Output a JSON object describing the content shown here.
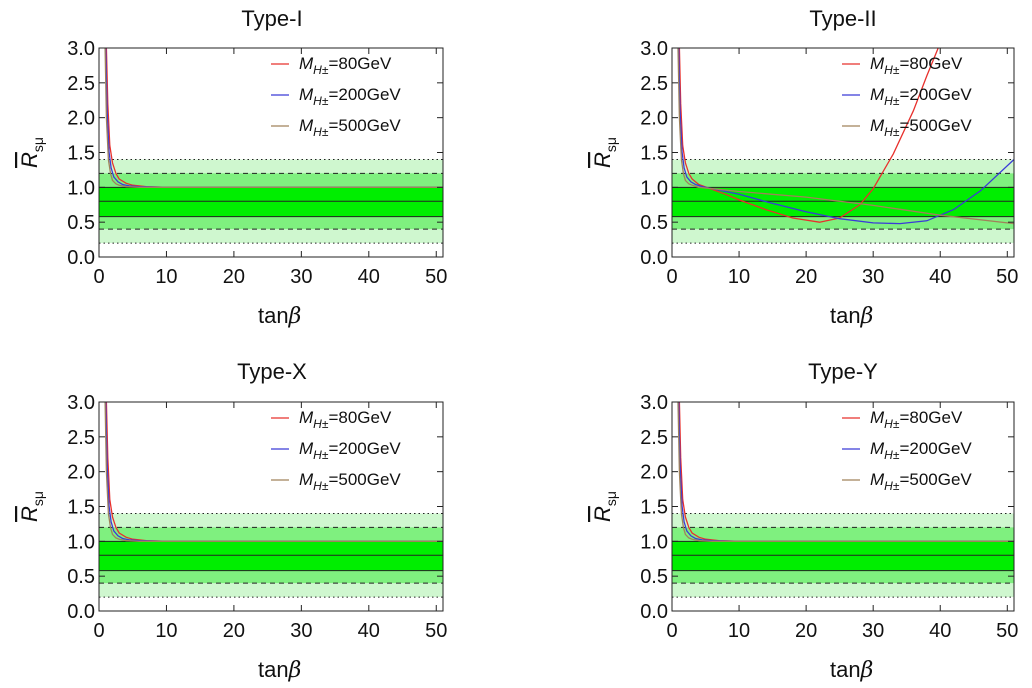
{
  "figure": {
    "xlabel_main": "tan",
    "xlabel_greek": "β",
    "ylabel_main": "R",
    "ylabel_sub": "sμ"
  },
  "chart_data": [
    {
      "type": "line",
      "title": "Type-I",
      "xlim": [
        0,
        51
      ],
      "ylim": [
        0,
        3
      ],
      "xticks": [
        "0",
        "10",
        "20",
        "30",
        "40",
        "50"
      ],
      "yticks": [
        "0.0",
        "0.5",
        "1.0",
        "1.5",
        "2.0",
        "2.5",
        "3.0"
      ],
      "bands": {
        "central": 0.8,
        "one_sigma": [
          0.58,
          1.0
        ],
        "two_sigma": [
          0.4,
          1.2
        ],
        "three_sigma": [
          0.2,
          1.4
        ],
        "colors": {
          "one_sigma": "#00ee00",
          "two_sigma": "#7ff07f",
          "three_sigma": "#cff7cf"
        }
      },
      "series": [
        {
          "name": "M_H±=80GeV",
          "legend_main": "M",
          "legend_sub": "H±",
          "legend_rest": "=80GeV",
          "color": "#e8302c",
          "x": [
            1.1,
            1.3,
            1.6,
            2,
            2.5,
            3,
            4,
            5,
            7,
            10,
            15,
            20,
            30,
            40,
            51
          ],
          "y": [
            3.0,
            2.2,
            1.6,
            1.35,
            1.2,
            1.12,
            1.06,
            1.03,
            1.01,
            1.0,
            1.0,
            1.0,
            1.0,
            1.0,
            1.0
          ]
        },
        {
          "name": "M_H±=200GeV",
          "legend_main": "M",
          "legend_sub": "H±",
          "legend_rest": "=200GeV",
          "color": "#3a3ad8",
          "x": [
            1.0,
            1.2,
            1.5,
            1.8,
            2.2,
            2.8,
            3.5,
            4.5,
            6,
            10,
            20,
            51
          ],
          "y": [
            3.0,
            2.1,
            1.5,
            1.28,
            1.15,
            1.08,
            1.04,
            1.02,
            1.01,
            1.0,
            1.0,
            1.0
          ]
        },
        {
          "name": "M_H±=500GeV",
          "legend_main": "M",
          "legend_sub": "H±",
          "legend_rest": "=500GeV",
          "color": "#a0825a",
          "x": [
            0.9,
            1.1,
            1.4,
            1.7,
            2,
            2.5,
            3,
            4,
            6,
            10,
            51
          ],
          "y": [
            3.0,
            2.0,
            1.4,
            1.2,
            1.1,
            1.05,
            1.03,
            1.01,
            1.0,
            1.0,
            1.0
          ]
        }
      ]
    },
    {
      "type": "line",
      "title": "Type-II",
      "xlim": [
        0,
        51
      ],
      "ylim": [
        0,
        3
      ],
      "xticks": [
        "0",
        "10",
        "20",
        "30",
        "40",
        "50"
      ],
      "yticks": [
        "0.0",
        "0.5",
        "1.0",
        "1.5",
        "2.0",
        "2.5",
        "3.0"
      ],
      "bands": {
        "central": 0.8,
        "one_sigma": [
          0.58,
          1.0
        ],
        "two_sigma": [
          0.4,
          1.2
        ],
        "three_sigma": [
          0.2,
          1.4
        ],
        "colors": {
          "one_sigma": "#00ee00",
          "two_sigma": "#7ff07f",
          "three_sigma": "#cff7cf"
        }
      },
      "series": [
        {
          "name": "M_H±=80GeV",
          "legend_main": "M",
          "legend_sub": "H±",
          "legend_rest": "=80GeV",
          "color": "#e8302c",
          "x": [
            1.1,
            1.3,
            1.6,
            2,
            2.5,
            3,
            4,
            6,
            8,
            10,
            14,
            18,
            22,
            25,
            28,
            30,
            33,
            36,
            38,
            39.7
          ],
          "y": [
            3.0,
            2.2,
            1.6,
            1.35,
            1.2,
            1.12,
            1.04,
            0.97,
            0.9,
            0.82,
            0.68,
            0.56,
            0.5,
            0.56,
            0.75,
            0.98,
            1.48,
            2.1,
            2.6,
            3.0
          ]
        },
        {
          "name": "M_H±=200GeV",
          "legend_main": "M",
          "legend_sub": "H±",
          "legend_rest": "=200GeV",
          "color": "#3a3ad8",
          "x": [
            1.0,
            1.2,
            1.5,
            1.8,
            2.2,
            2.8,
            3.5,
            4.5,
            6,
            10,
            15,
            20,
            25,
            30,
            34,
            38,
            42,
            46,
            51
          ],
          "y": [
            3.0,
            2.1,
            1.5,
            1.28,
            1.15,
            1.08,
            1.04,
            1.01,
            0.98,
            0.9,
            0.77,
            0.65,
            0.55,
            0.49,
            0.48,
            0.52,
            0.68,
            0.95,
            1.4
          ]
        },
        {
          "name": "M_H±=500GeV",
          "legend_main": "M",
          "legend_sub": "H±",
          "legend_rest": "=500GeV",
          "color": "#a0825a",
          "x": [
            0.9,
            1.1,
            1.4,
            1.7,
            2,
            2.5,
            3,
            4,
            6,
            10,
            20,
            30,
            40,
            51
          ],
          "y": [
            3.0,
            2.0,
            1.4,
            1.2,
            1.1,
            1.05,
            1.03,
            1.0,
            0.98,
            0.94,
            0.86,
            0.74,
            0.6,
            0.48
          ]
        }
      ]
    },
    {
      "type": "line",
      "title": "Type-X",
      "xlim": [
        0,
        51
      ],
      "ylim": [
        0,
        3
      ],
      "xticks": [
        "0",
        "10",
        "20",
        "30",
        "40",
        "50"
      ],
      "yticks": [
        "0.0",
        "0.5",
        "1.0",
        "1.5",
        "2.0",
        "2.5",
        "3.0"
      ],
      "bands": {
        "central": 0.8,
        "one_sigma": [
          0.58,
          1.0
        ],
        "two_sigma": [
          0.4,
          1.2
        ],
        "three_sigma": [
          0.2,
          1.4
        ],
        "colors": {
          "one_sigma": "#00ee00",
          "two_sigma": "#7ff07f",
          "three_sigma": "#cff7cf"
        }
      },
      "series": [
        {
          "name": "M_H±=80GeV",
          "legend_main": "M",
          "legend_sub": "H±",
          "legend_rest": "=80GeV",
          "color": "#e8302c",
          "x": [
            1.1,
            1.3,
            1.6,
            2,
            2.5,
            3,
            4,
            5,
            7,
            10,
            15,
            20,
            30,
            40,
            51
          ],
          "y": [
            3.0,
            2.2,
            1.6,
            1.35,
            1.2,
            1.12,
            1.06,
            1.03,
            1.01,
            1.0,
            1.0,
            1.0,
            1.0,
            1.0,
            1.0
          ]
        },
        {
          "name": "M_H±=200GeV",
          "legend_main": "M",
          "legend_sub": "H±",
          "legend_rest": "=200GeV",
          "color": "#3a3ad8",
          "x": [
            1.0,
            1.2,
            1.5,
            1.8,
            2.2,
            2.8,
            3.5,
            4.5,
            6,
            10,
            20,
            51
          ],
          "y": [
            3.0,
            2.1,
            1.5,
            1.28,
            1.15,
            1.08,
            1.04,
            1.02,
            1.01,
            1.0,
            1.0,
            1.0
          ]
        },
        {
          "name": "M_H±=500GeV",
          "legend_main": "M",
          "legend_sub": "H±",
          "legend_rest": "=500GeV",
          "color": "#a0825a",
          "x": [
            0.9,
            1.1,
            1.4,
            1.7,
            2,
            2.5,
            3,
            4,
            6,
            10,
            51
          ],
          "y": [
            3.0,
            2.0,
            1.4,
            1.2,
            1.1,
            1.05,
            1.03,
            1.01,
            1.0,
            1.0,
            1.0
          ]
        }
      ]
    },
    {
      "type": "line",
      "title": "Type-Y",
      "xlim": [
        0,
        51
      ],
      "ylim": [
        0,
        3
      ],
      "xticks": [
        "0",
        "10",
        "20",
        "30",
        "40",
        "50"
      ],
      "yticks": [
        "0.0",
        "0.5",
        "1.0",
        "1.5",
        "2.0",
        "2.5",
        "3.0"
      ],
      "bands": {
        "central": 0.8,
        "one_sigma": [
          0.58,
          1.0
        ],
        "two_sigma": [
          0.4,
          1.2
        ],
        "three_sigma": [
          0.2,
          1.4
        ],
        "colors": {
          "one_sigma": "#00ee00",
          "two_sigma": "#7ff07f",
          "three_sigma": "#cff7cf"
        }
      },
      "series": [
        {
          "name": "M_H±=80GeV",
          "legend_main": "M",
          "legend_sub": "H±",
          "legend_rest": "=80GeV",
          "color": "#e8302c",
          "x": [
            1.1,
            1.3,
            1.6,
            2,
            2.5,
            3,
            4,
            5,
            7,
            10,
            15,
            20,
            30,
            40,
            51
          ],
          "y": [
            3.0,
            2.2,
            1.6,
            1.35,
            1.2,
            1.12,
            1.06,
            1.03,
            1.01,
            1.0,
            1.0,
            1.0,
            1.0,
            1.0,
            1.0
          ]
        },
        {
          "name": "M_H±=200GeV",
          "legend_main": "M",
          "legend_sub": "H±",
          "legend_rest": "=200GeV",
          "color": "#3a3ad8",
          "x": [
            1.0,
            1.2,
            1.5,
            1.8,
            2.2,
            2.8,
            3.5,
            4.5,
            6,
            10,
            20,
            51
          ],
          "y": [
            3.0,
            2.1,
            1.5,
            1.28,
            1.15,
            1.08,
            1.04,
            1.02,
            1.01,
            1.0,
            1.0,
            1.0
          ]
        },
        {
          "name": "M_H±=500GeV",
          "legend_main": "M",
          "legend_sub": "H±",
          "legend_rest": "=500GeV",
          "color": "#a0825a",
          "x": [
            0.9,
            1.1,
            1.4,
            1.7,
            2,
            2.5,
            3,
            4,
            6,
            10,
            51
          ],
          "y": [
            3.0,
            2.0,
            1.4,
            1.2,
            1.1,
            1.05,
            1.03,
            1.01,
            1.0,
            1.0,
            1.0
          ]
        }
      ]
    }
  ]
}
